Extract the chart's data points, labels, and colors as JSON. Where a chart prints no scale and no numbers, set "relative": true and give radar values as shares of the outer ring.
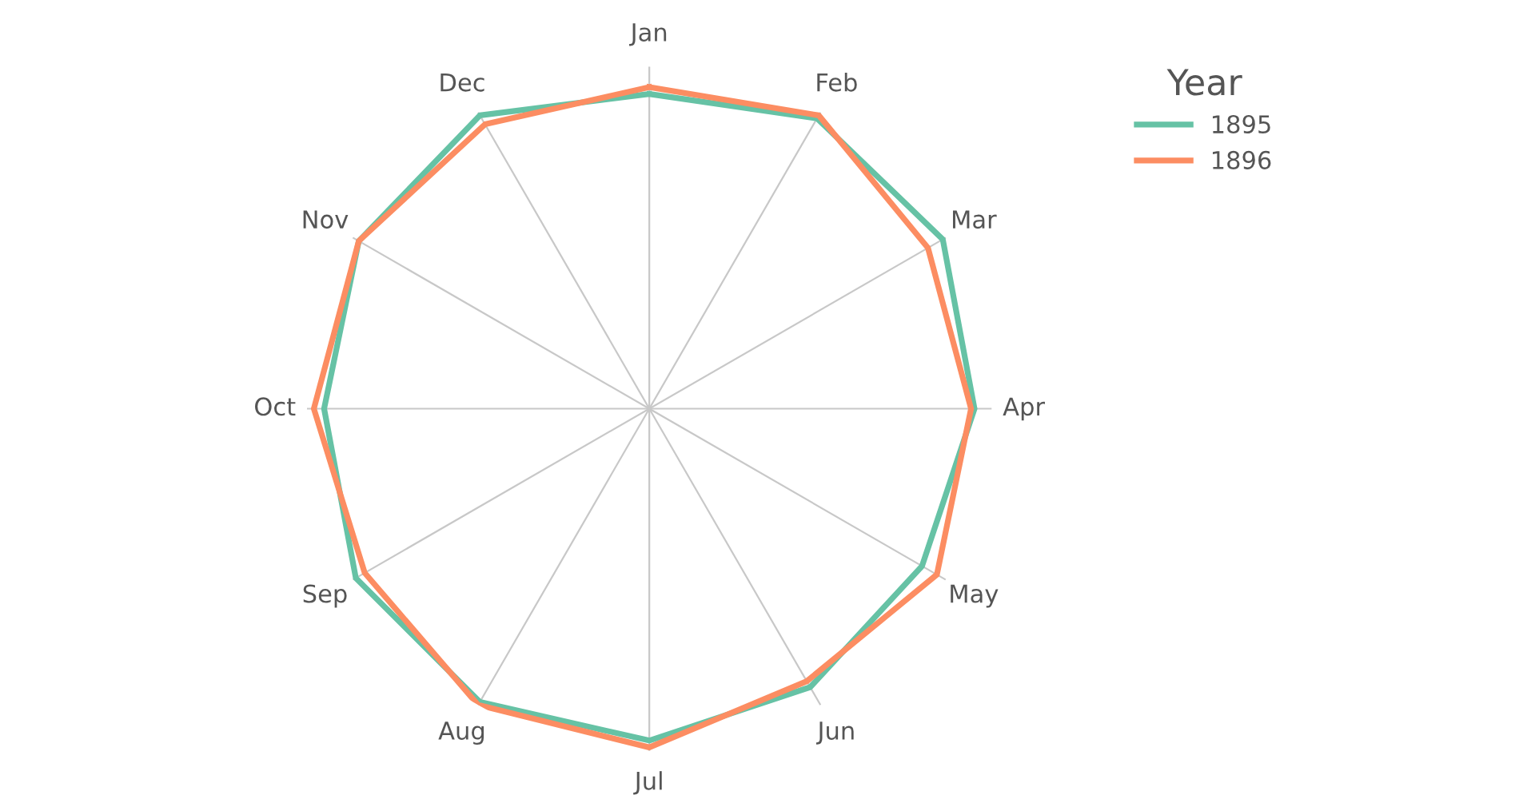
{
  "chart_data": {
    "type": "radar",
    "relative": true,
    "legend_title": "Year",
    "legend": "top right",
    "grid": "x",
    "marker": "none",
    "line_style": "solid",
    "categories": [
      "Jan",
      "Feb",
      "Mar",
      "Apr",
      "May",
      "Jun",
      "Jul",
      "Aug",
      "Sep",
      "Oct",
      "Nov",
      "Dec"
    ],
    "series": [
      {
        "name": "1895",
        "color": "#66c2a5",
        "values": [
          0.92,
          0.98,
          0.99,
          0.95,
          0.92,
          0.94,
          0.97,
          0.99,
          0.99,
          0.95,
          0.98,
          0.99
        ]
      },
      {
        "name": "1896",
        "color": "#fc8d62",
        "values": [
          0.94,
          0.99,
          0.94,
          0.94,
          0.97,
          0.92,
          0.99,
          1.0,
          0.96,
          0.98,
          0.98,
          0.96
        ]
      }
    ]
  }
}
